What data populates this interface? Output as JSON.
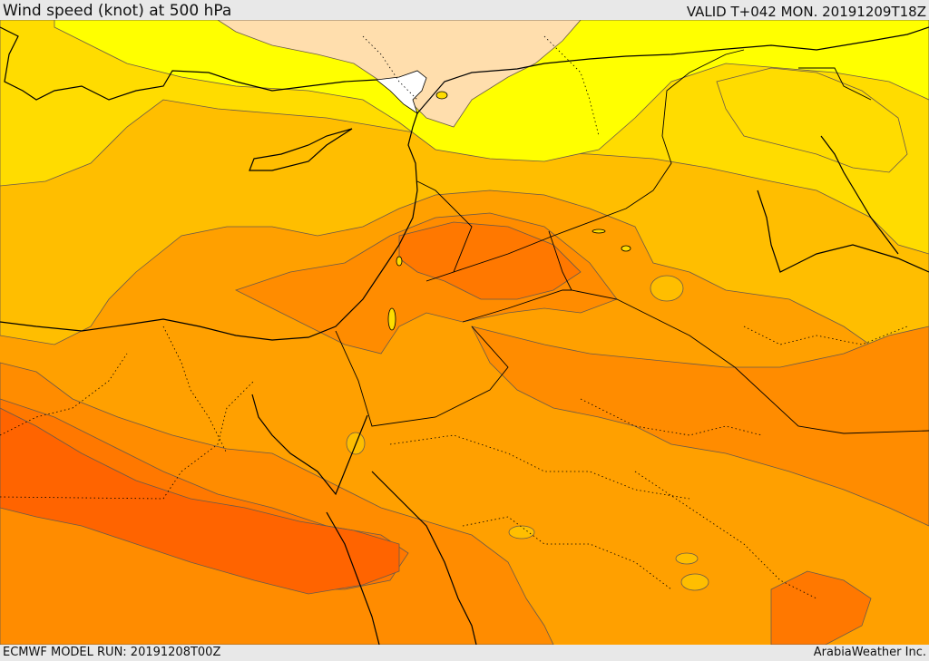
{
  "header": {
    "title": "Wind speed (knot) at 500 hPa",
    "valid": "VALID T+042 MON. 20191209T18Z"
  },
  "footer": {
    "model_run": "ECMWF MODEL RUN: 20191208T00Z",
    "credit": "ArabiaWeather Inc."
  },
  "colors": {
    "band_1": "#ffdead",
    "band_2": "#ffff00",
    "band_3": "#ffdc00",
    "band_4": "#ffbe00",
    "band_5": "#ffa000",
    "band_6": "#ff8c00",
    "band_7": "#ff7800",
    "band_8": "#ff6400",
    "no_data": "#ffffff",
    "border": "#000000",
    "contour": "#5a4a3a"
  }
}
